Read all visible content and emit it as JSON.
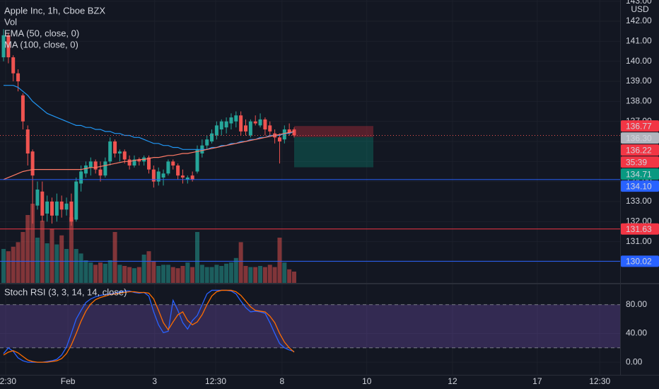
{
  "chart_data": [
    {
      "type": "candlestick",
      "title": "Apple Inc, 1h, Cboe BZX",
      "currency": "USD",
      "countdown": "35:39",
      "grid": true,
      "up_color": "#26a69a",
      "down_color": "#ef5350",
      "open": [
        140.2,
        141.3,
        140.2,
        139.4,
        138.3,
        136.6,
        135.5,
        132.8,
        133.5,
        132.4,
        133.0,
        132.3,
        133.0,
        132.6,
        133.0,
        132.1,
        133.9,
        134.4,
        134.7,
        135.0,
        134.6,
        134.3,
        135.0,
        136.0,
        135.4,
        135.5,
        135.1,
        134.8,
        135.1,
        135.0,
        135.2,
        134.6,
        134.0,
        134.2,
        134.4,
        135.0,
        134.8,
        134.3,
        134.1,
        134.3,
        134.5,
        135.4,
        135.8,
        136.0,
        136.3,
        136.6,
        136.7,
        136.9,
        137.0,
        137.3,
        136.8,
        136.3,
        137.0,
        136.8,
        137.1,
        136.8,
        136.4,
        136.2,
        136.1,
        136.6,
        136.6
      ],
      "high": [
        141.6,
        141.4,
        140.3,
        139.6,
        138.4,
        136.8,
        135.6,
        134.0,
        134.0,
        133.3,
        133.2,
        133.4,
        133.3,
        133.2,
        133.4,
        134.2,
        134.8,
        135.0,
        135.2,
        135.1,
        135.0,
        135.2,
        136.2,
        136.1,
        135.6,
        135.6,
        135.3,
        135.3,
        135.2,
        135.3,
        135.3,
        134.8,
        134.7,
        134.6,
        135.1,
        135.1,
        134.9,
        134.6,
        134.3,
        134.5,
        135.8,
        136.1,
        136.3,
        136.6,
        137.0,
        137.1,
        137.2,
        137.4,
        137.5,
        137.5,
        137.1,
        137.1,
        137.3,
        137.4,
        137.2,
        137.0,
        136.6,
        136.4,
        136.8,
        136.9,
        136.7
      ],
      "low": [
        140.0,
        139.9,
        139.0,
        138.5,
        136.6,
        134.8,
        131.9,
        132.6,
        132.0,
        132.0,
        131.9,
        132.0,
        132.2,
        132.3,
        131.8,
        132.0,
        133.5,
        134.2,
        134.3,
        134.4,
        134.0,
        134.2,
        134.8,
        135.2,
        135.0,
        134.9,
        134.6,
        134.7,
        134.8,
        134.8,
        134.4,
        133.7,
        133.8,
        133.8,
        134.3,
        134.6,
        134.1,
        133.9,
        133.9,
        134.0,
        134.4,
        135.2,
        135.6,
        135.9,
        136.1,
        136.3,
        136.4,
        136.6,
        136.7,
        136.3,
        136.3,
        136.2,
        136.8,
        136.7,
        136.3,
        136.3,
        135.9,
        134.9,
        135.9,
        136.3,
        136.2
      ],
      "close": [
        141.3,
        140.2,
        139.4,
        139.0,
        137.0,
        135.4,
        134.3,
        133.6,
        132.3,
        133.0,
        132.3,
        133.0,
        132.6,
        132.9,
        132.0,
        134.0,
        134.5,
        134.8,
        135.0,
        134.6,
        134.3,
        135.0,
        136.0,
        135.4,
        135.5,
        135.1,
        134.8,
        135.1,
        135.0,
        135.2,
        134.6,
        134.0,
        134.5,
        134.4,
        135.0,
        134.8,
        134.3,
        134.2,
        134.2,
        134.1,
        135.6,
        135.8,
        136.1,
        136.4,
        136.8,
        137.0,
        137.0,
        137.2,
        137.3,
        136.5,
        136.5,
        137.0,
        136.9,
        137.1,
        136.6,
        136.5,
        136.2,
        136.0,
        136.6,
        136.4,
        136.3
      ],
      "series": [
        {
          "name": "EMA (50, close, 0)",
          "color": "#2196f3",
          "values": [
            138.8,
            138.8,
            138.8,
            138.7,
            138.5,
            138.3,
            138.0,
            137.8,
            137.6,
            137.4,
            137.3,
            137.2,
            137.1,
            137.0,
            136.9,
            136.8,
            136.8,
            136.7,
            136.7,
            136.6,
            136.6,
            136.5,
            136.5,
            136.4,
            136.4,
            136.3,
            136.3,
            136.2,
            136.2,
            136.1,
            136.0,
            135.9,
            135.9,
            135.8,
            135.8,
            135.7,
            135.7,
            135.6,
            135.6,
            135.6,
            135.6,
            135.6,
            135.6,
            135.7,
            135.7,
            135.8,
            135.8,
            135.9,
            135.9,
            136.0,
            136.0,
            136.1,
            136.1,
            136.2,
            136.2,
            136.3,
            136.3,
            136.3,
            136.4,
            136.4,
            136.5
          ]
        },
        {
          "name": "MA (100, close, 0)",
          "color": "#ff7a66",
          "values": [
            134.1,
            134.2,
            134.3,
            134.4,
            134.5,
            134.55,
            134.6,
            134.6,
            134.6,
            134.6,
            134.6,
            134.6,
            134.6,
            134.6,
            134.6,
            134.6,
            134.6,
            134.65,
            134.7,
            134.7,
            134.75,
            134.8,
            134.85,
            134.9,
            134.95,
            135.0,
            135.0,
            135.05,
            135.1,
            135.1,
            135.15,
            135.2,
            135.2,
            135.25,
            135.3,
            135.3,
            135.35,
            135.4,
            135.4,
            135.45,
            135.5,
            135.55,
            135.6,
            135.65,
            135.7,
            135.75,
            135.8,
            135.85,
            135.9,
            135.95,
            136.0,
            136.05,
            136.1,
            136.15,
            136.2,
            136.25,
            136.3,
            136.35,
            136.4,
            136.45,
            136.5
          ]
        }
      ],
      "ylim": [
        128.94,
        143.06
      ],
      "yticks": [
        {
          "value": 143,
          "label": "143.00"
        },
        {
          "value": 142,
          "label": "142.00"
        },
        {
          "value": 141,
          "label": "141.00"
        },
        {
          "value": 140,
          "label": "140.00"
        },
        {
          "value": 139,
          "label": "139.00"
        },
        {
          "value": 138,
          "label": "138.00"
        },
        {
          "value": 137,
          "label": "137.00"
        },
        {
          "value": 136,
          "label": "136.00"
        },
        {
          "value": 135,
          "label": "135.00"
        },
        {
          "value": 134,
          "label": "134.00"
        },
        {
          "value": 133,
          "label": "133.00"
        },
        {
          "value": 132,
          "label": "132.00"
        },
        {
          "value": 131,
          "label": "131.00"
        },
        {
          "value": 130,
          "label": "130.00"
        }
      ],
      "xlim": [
        -0.73,
        127.3
      ],
      "xticks": [
        {
          "value": 0.44,
          "label": "12:30"
        },
        {
          "value": 13.3,
          "label": "Feb"
        },
        {
          "value": 31.2,
          "label": "3"
        },
        {
          "value": 43.8,
          "label": "12:30"
        },
        {
          "value": 57.5,
          "label": "8"
        },
        {
          "value": 75,
          "label": "10"
        },
        {
          "value": 92.7,
          "label": "12"
        },
        {
          "value": 110.2,
          "label": "17"
        },
        {
          "value": 123.1,
          "label": "12:30"
        }
      ],
      "price_tags": {
        "values": [
          136.77,
          136.3,
          136.22,
          134.71,
          134.1,
          131.63,
          130.02
        ],
        "value_labels": [
          "136.77",
          "136.30",
          "136.22",
          "134.71",
          "134.10",
          "131.63",
          "130.02"
        ],
        "colors": [
          "#f23645",
          "#b2b5be",
          "#f23645",
          "#089981",
          "#2962ff",
          "#f23645",
          "#2962ff"
        ],
        "lines": [
          "none",
          "dotted",
          "none",
          "none",
          "solid",
          "solid",
          "solid"
        ]
      }
    },
    {
      "type": "bar",
      "title": "Vol",
      "ylim": [
        0,
        25
      ],
      "values": [
        3.0,
        2.8,
        3.2,
        3.6,
        4.5,
        6.0,
        7.0,
        4.0,
        5.5,
        3.5,
        4.8,
        3.4,
        4.2,
        3.0,
        5.8,
        3.0,
        2.6,
        2.0,
        1.8,
        1.6,
        1.8,
        1.7,
        2.0,
        4.5,
        1.6,
        1.5,
        1.4,
        1.3,
        1.4,
        2.5,
        2.8,
        1.9,
        1.5,
        1.6,
        1.6,
        1.4,
        1.3,
        1.5,
        1.8,
        1.4,
        4.5,
        1.6,
        1.4,
        1.4,
        1.6,
        1.5,
        1.7,
        1.8,
        2.2,
        3.6,
        1.5,
        1.4,
        1.4,
        1.5,
        1.4,
        1.6,
        1.4,
        4.0,
        1.8,
        1.2,
        1.0
      ]
    },
    {
      "type": "line",
      "title": "Stoch RSI (3, 3, 14, 14, close)",
      "band": [
        20,
        80
      ],
      "band_color": "#7e57c2",
      "ylim": [
        -17.6,
        108.3
      ],
      "yticks": [
        {
          "value": 80,
          "label": "80.00"
        },
        {
          "value": 40,
          "label": "40.00"
        },
        {
          "value": 0,
          "label": "0.00"
        }
      ],
      "series": [
        {
          "color": "#2962ff",
          "values": [
            12,
            20,
            15,
            6,
            2,
            0,
            0,
            0,
            0,
            1,
            2,
            4,
            10,
            21,
            40,
            60,
            72,
            83,
            88,
            91,
            93,
            94,
            95,
            96,
            98,
            99,
            99,
            97,
            96,
            97,
            92,
            70,
            52,
            41,
            43,
            86,
            72,
            55,
            46,
            58,
            65,
            80,
            95,
            100,
            100,
            100,
            100,
            99,
            95,
            85,
            76,
            70,
            71,
            70,
            68,
            55,
            40,
            26,
            20,
            17,
            15
          ]
        },
        {
          "color": "#ff6d00",
          "values": [
            10,
            14,
            16,
            13,
            8,
            3,
            1,
            0,
            0,
            0,
            1,
            2,
            5,
            12,
            24,
            40,
            57,
            71,
            81,
            87,
            90,
            92,
            94,
            95,
            96,
            97,
            98,
            98,
            97,
            97,
            96,
            88,
            72,
            55,
            45,
            56,
            66,
            70,
            58,
            52,
            56,
            66,
            80,
            92,
            98,
            100,
            100,
            100,
            98,
            93,
            85,
            77,
            72,
            71,
            70,
            64,
            55,
            40,
            28,
            20,
            14
          ]
        }
      ]
    }
  ]
}
